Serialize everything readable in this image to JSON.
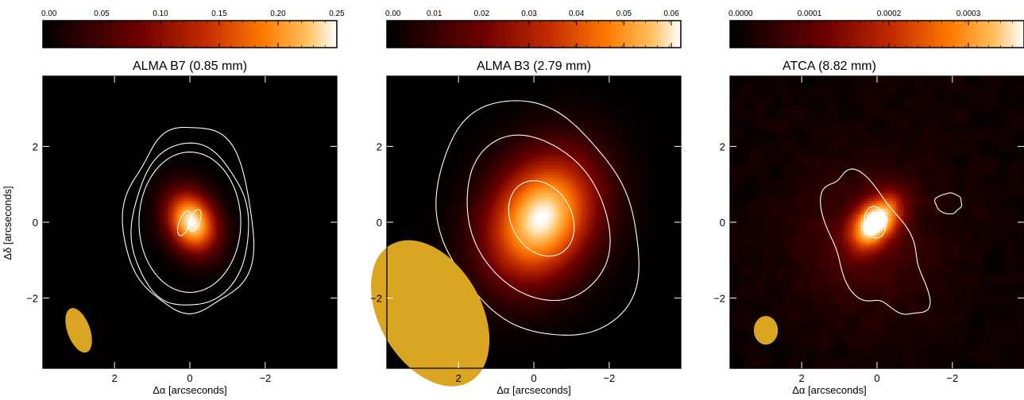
{
  "figure": {
    "ylabel": "Δδ  [arcseconds]",
    "xlabel": "Δα  [arcseconds]"
  },
  "chart_data": [
    {
      "type": "heatmap",
      "title": "ALMA B7 (0.85 mm)",
      "xlabel": "Δα  [arcseconds]",
      "ylabel": "Δδ  [arcseconds]",
      "x_ticks": [
        {
          "value": 2,
          "label": "2"
        },
        {
          "value": 0,
          "label": "0"
        },
        {
          "value": -2,
          "label": "−2"
        }
      ],
      "y_ticks": [
        {
          "value": 2,
          "label": "2"
        },
        {
          "value": 0,
          "label": "0"
        },
        {
          "value": -2,
          "label": "−2"
        }
      ],
      "xlim": [
        3.9,
        -3.9
      ],
      "ylim": [
        -3.85,
        3.85
      ],
      "colorbar": {
        "range": [
          0.0,
          0.25
        ],
        "ticks": [
          {
            "value": 0.0,
            "label": "0.00"
          },
          {
            "value": 0.05,
            "label": "0.05"
          },
          {
            "value": 0.1,
            "label": "0.10"
          },
          {
            "value": 0.15,
            "label": "0.15"
          },
          {
            "value": 0.2,
            "label": "0.20"
          },
          {
            "value": 0.25,
            "label": "0.25"
          }
        ]
      },
      "source": {
        "x": -0.05,
        "y": 0.0,
        "peak": 1.0,
        "sigma_major": 0.6,
        "sigma_minor": 0.45,
        "pa_deg": -25
      },
      "contours": [
        {
          "cx": 0.0,
          "cy": 0.0,
          "a": 1.35,
          "b": 1.85,
          "angle_deg": 0,
          "wobble": 0.0
        },
        {
          "cx": 0.0,
          "cy": -0.1,
          "a": 1.55,
          "b": 2.15,
          "angle_deg": 0,
          "wobble": 0.05
        },
        {
          "cx": 0.0,
          "cy": 0.05,
          "a": 1.72,
          "b": 2.45,
          "angle_deg": 0,
          "wobble": 0.08
        },
        {
          "cx": 0.15,
          "cy": -0.03,
          "a": 0.14,
          "b": 0.34,
          "angle_deg": -20,
          "wobble": 0.0
        },
        {
          "cx": -0.14,
          "cy": 0.05,
          "a": 0.13,
          "b": 0.3,
          "angle_deg": -20,
          "wobble": 0.0
        }
      ],
      "beam": {
        "x": 2.95,
        "y": -2.85,
        "major": 0.62,
        "minor": 0.3,
        "pa_deg": -20
      }
    },
    {
      "type": "heatmap",
      "title": "ALMA B3 (2.79 mm)",
      "xlabel": "Δα  [arcseconds]",
      "ylabel": "",
      "x_ticks": [
        {
          "value": 2,
          "label": "2"
        },
        {
          "value": 0,
          "label": "0"
        },
        {
          "value": -2,
          "label": "−2"
        }
      ],
      "y_ticks": [
        {
          "value": 2,
          "label": "2"
        },
        {
          "value": 0,
          "label": "0"
        },
        {
          "value": -2,
          "label": "−2"
        }
      ],
      "xlim": [
        3.9,
        -3.9
      ],
      "ylim": [
        -3.85,
        3.85
      ],
      "colorbar": {
        "range": [
          0.0,
          0.062
        ],
        "ticks": [
          {
            "value": 0.0,
            "label": "0.00"
          },
          {
            "value": 0.01,
            "label": "0.01"
          },
          {
            "value": 0.02,
            "label": "0.02"
          },
          {
            "value": 0.03,
            "label": "0.03"
          },
          {
            "value": 0.04,
            "label": "0.04"
          },
          {
            "value": 0.05,
            "label": "0.05"
          },
          {
            "value": 0.06,
            "label": "0.06"
          }
        ]
      },
      "source": {
        "x": -0.2,
        "y": 0.1,
        "peak": 1.0,
        "sigma_major": 1.25,
        "sigma_minor": 0.95,
        "pa_deg": 30
      },
      "contours": [
        {
          "cx": -0.2,
          "cy": 0.1,
          "a": 0.8,
          "b": 1.05,
          "angle_deg": 30,
          "wobble": 0.0
        },
        {
          "cx": -0.1,
          "cy": 0.1,
          "a": 1.75,
          "b": 2.3,
          "angle_deg": 30,
          "wobble": 0.03
        },
        {
          "cx": -0.1,
          "cy": 0.05,
          "a": 2.45,
          "b": 3.3,
          "angle_deg": 30,
          "wobble": 0.06
        }
      ],
      "beam": {
        "x": 2.75,
        "y": -2.4,
        "major": 2.1,
        "minor": 1.35,
        "pa_deg": -30
      }
    },
    {
      "type": "heatmap",
      "title": "ATCA (8.82 mm)",
      "xlabel": "Δα  [arcseconds]",
      "ylabel": "",
      "x_ticks": [
        {
          "value": 2,
          "label": "2"
        },
        {
          "value": 0,
          "label": "0"
        },
        {
          "value": -2,
          "label": "−2"
        }
      ],
      "y_ticks": [
        {
          "value": 2,
          "label": "2"
        },
        {
          "value": 0,
          "label": "0"
        },
        {
          "value": -2,
          "label": "−2"
        }
      ],
      "xlim": [
        3.9,
        -3.9
      ],
      "ylim": [
        -3.85,
        3.85
      ],
      "colorbar": {
        "range": [
          0.0,
          0.00037
        ],
        "ticks": [
          {
            "value": 0.0,
            "label": "0.0000"
          },
          {
            "value": 0.0001,
            "label": "0.0001"
          },
          {
            "value": 0.0002,
            "label": "0.0002"
          },
          {
            "value": 0.0003,
            "label": "0.0003"
          }
        ]
      },
      "source": {
        "x": 0.05,
        "y": 0.0,
        "peak": 1.0,
        "sigma_major": 0.55,
        "sigma_minor": 0.35,
        "pa_deg": 40
      },
      "background_level": 0.12,
      "contours": [
        {
          "cx": 0.05,
          "cy": 0.0,
          "a": 0.28,
          "b": 0.42,
          "angle_deg": 10,
          "wobble": 0.0
        },
        {
          "cx": 0.1,
          "cy": -0.6,
          "a": 1.0,
          "b": 2.1,
          "angle_deg": 30,
          "wobble": 0.18
        },
        {
          "cx": -1.9,
          "cy": 0.5,
          "a": 0.35,
          "b": 0.27,
          "angle_deg": 0,
          "wobble": 0.15
        }
      ],
      "beam": {
        "x": 2.95,
        "y": -2.85,
        "major": 0.38,
        "minor": 0.32,
        "pa_deg": 0
      }
    }
  ]
}
